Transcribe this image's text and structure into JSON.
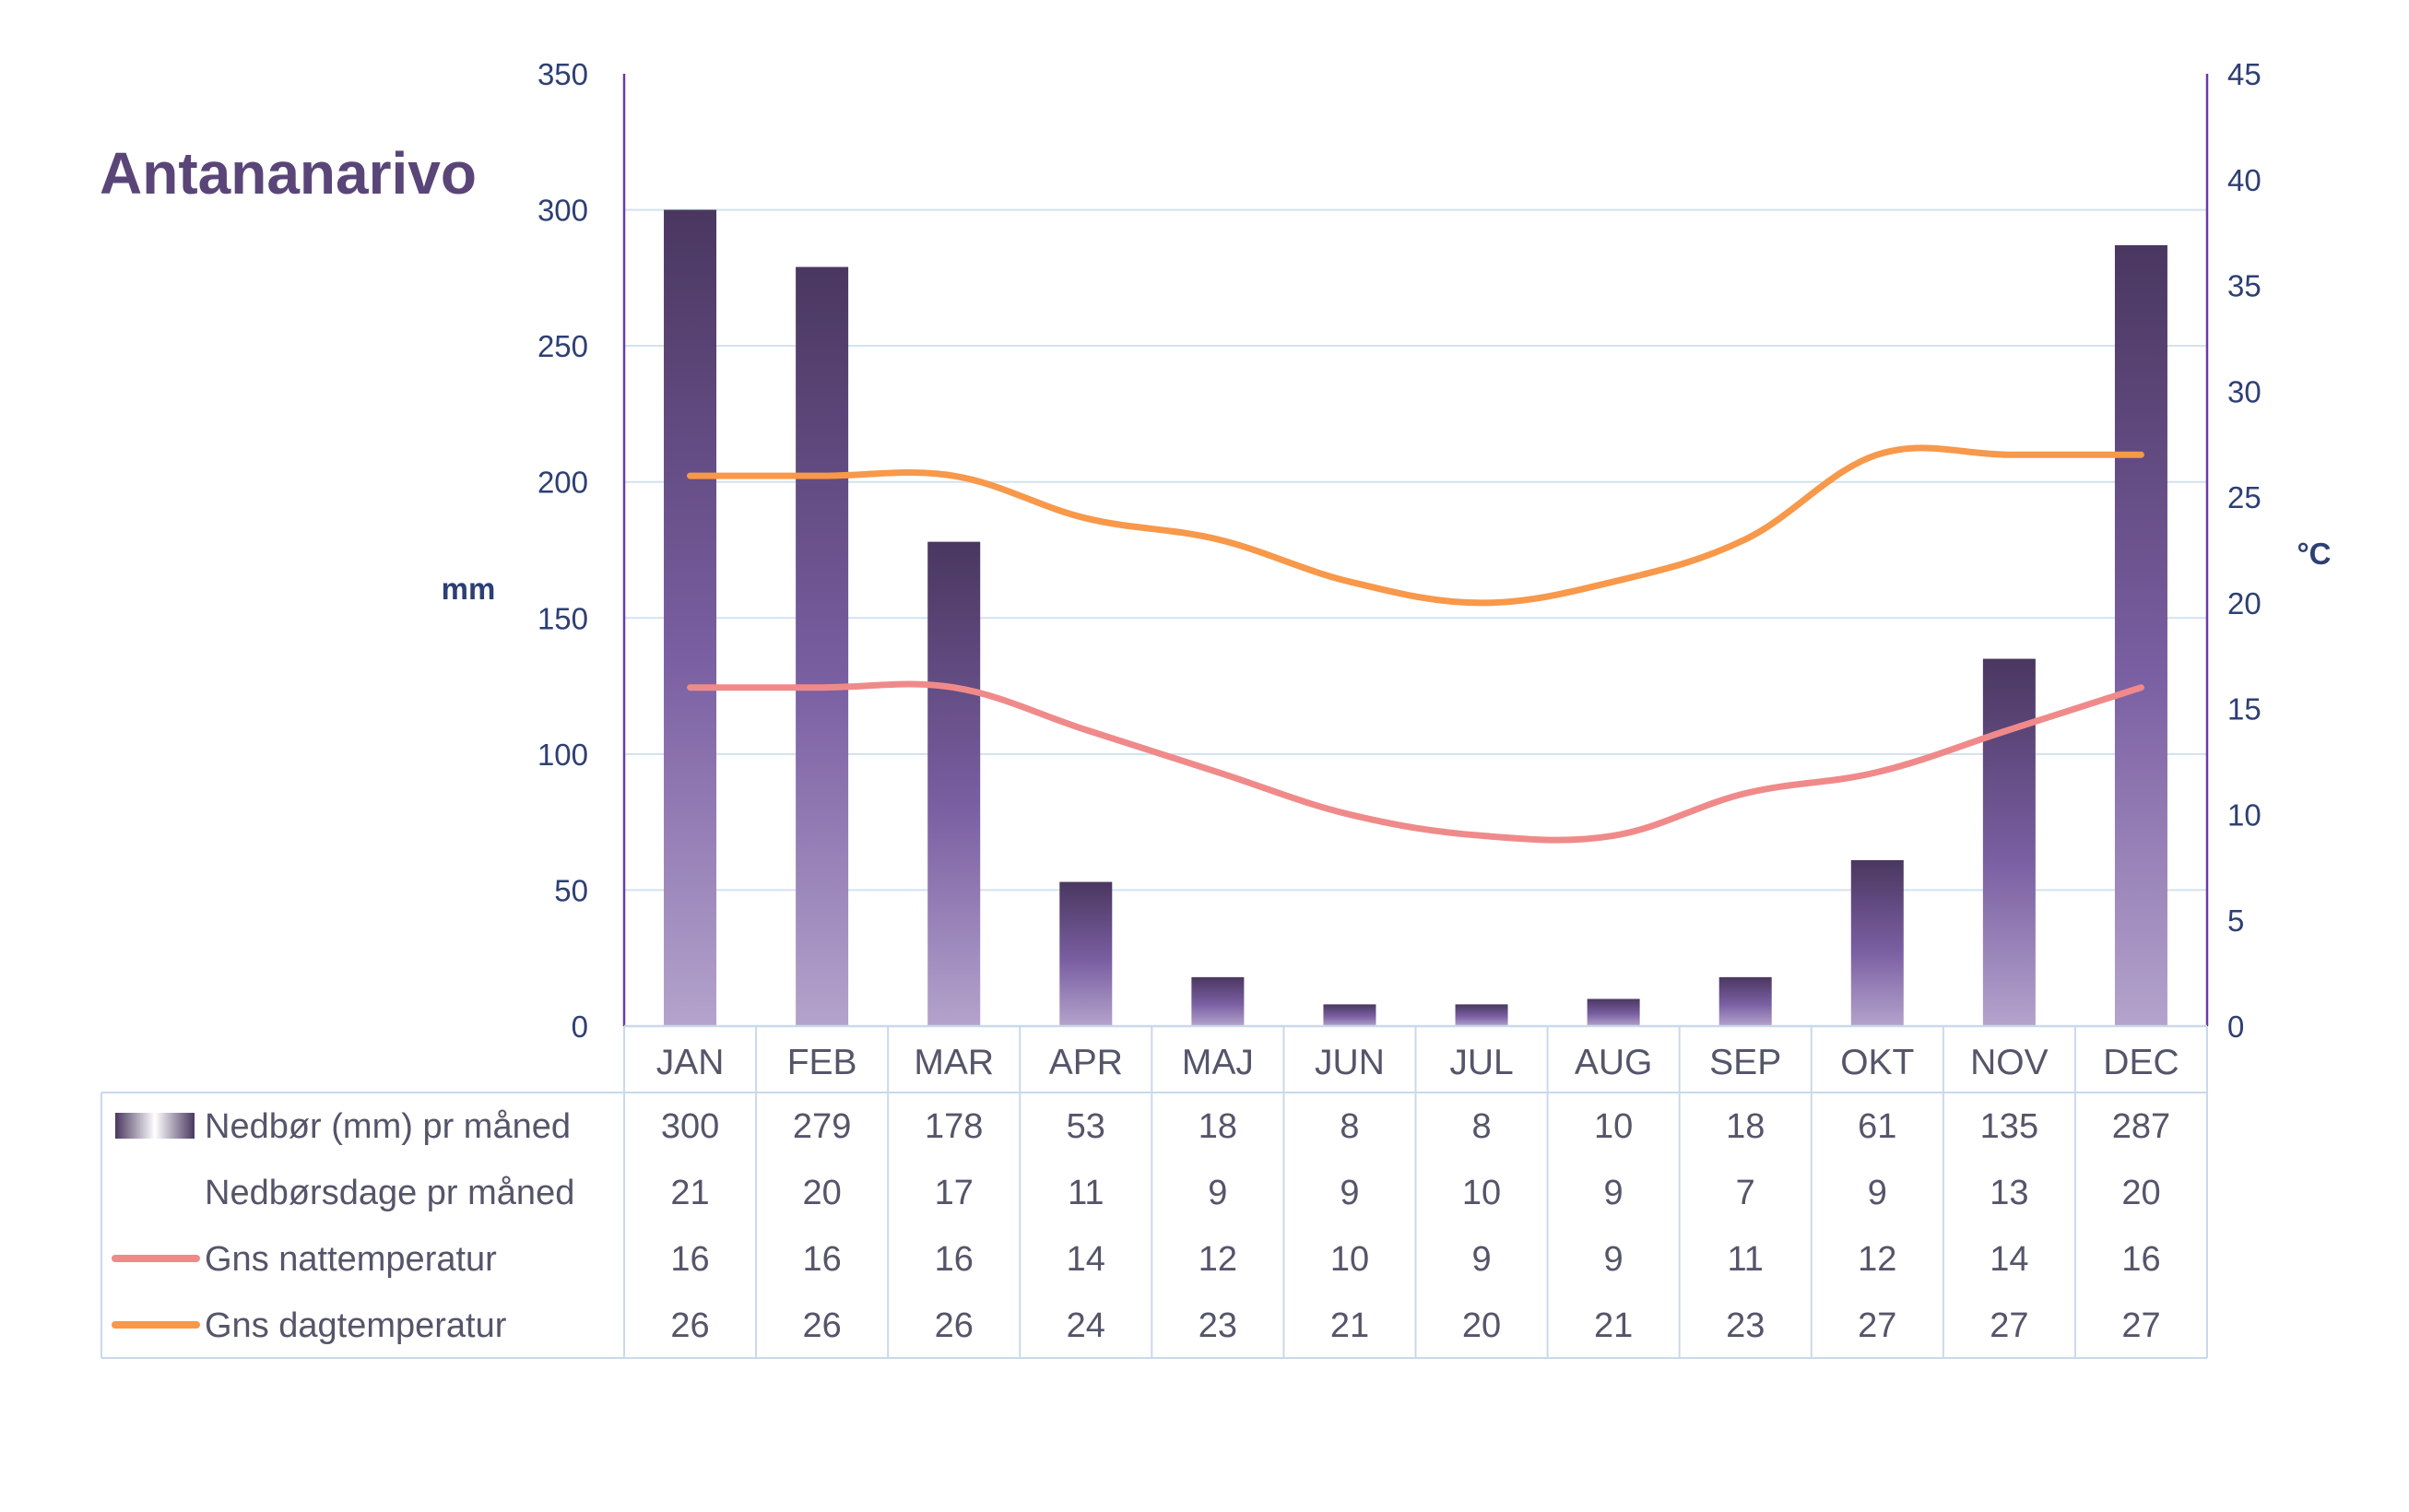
{
  "chart_data": {
    "type": "bar",
    "title": "Antananarivo",
    "categories": [
      "JAN",
      "FEB",
      "MAR",
      "APR",
      "MAJ",
      "JUN",
      "JUL",
      "AUG",
      "SEP",
      "OKT",
      "NOV",
      "DEC"
    ],
    "left_axis": {
      "label": "mm",
      "ylim": [
        0,
        350
      ],
      "ticks": [
        0,
        50,
        100,
        150,
        200,
        250,
        300,
        350
      ]
    },
    "right_axis": {
      "label": "°C",
      "ylim": [
        0,
        45
      ],
      "ticks": [
        0,
        5,
        10,
        15,
        20,
        25,
        30,
        35,
        40,
        45
      ]
    },
    "grid": true,
    "series": [
      {
        "name": "Nedbør (mm) pr måned",
        "type": "bar",
        "axis": "left",
        "color": "#5a4578",
        "values": [
          300,
          279,
          178,
          53,
          18,
          8,
          8,
          10,
          18,
          61,
          135,
          287
        ]
      },
      {
        "name": "Nedbørsdage pr måned",
        "type": "table-only",
        "values": [
          21,
          20,
          17,
          11,
          9,
          9,
          10,
          9,
          7,
          9,
          13,
          20
        ]
      },
      {
        "name": "Gns nattemperatur",
        "type": "line",
        "axis": "right",
        "color": "#f08a8a",
        "values": [
          16,
          16,
          16,
          14,
          12,
          10,
          9,
          9,
          11,
          12,
          14,
          16
        ]
      },
      {
        "name": "Gns dagtemperatur",
        "type": "line",
        "axis": "right",
        "color": "#f7984a",
        "values": [
          26,
          26,
          26,
          24,
          23,
          21,
          20,
          21,
          23,
          27,
          27,
          27
        ]
      }
    ]
  },
  "colors": {
    "title": "#5a4578",
    "axis_text": "#2d3f73",
    "grid": "#d3e1ef",
    "axis_line": "#6a3aa6",
    "table_border": "#c9d9ea",
    "table_text": "#55556a"
  }
}
